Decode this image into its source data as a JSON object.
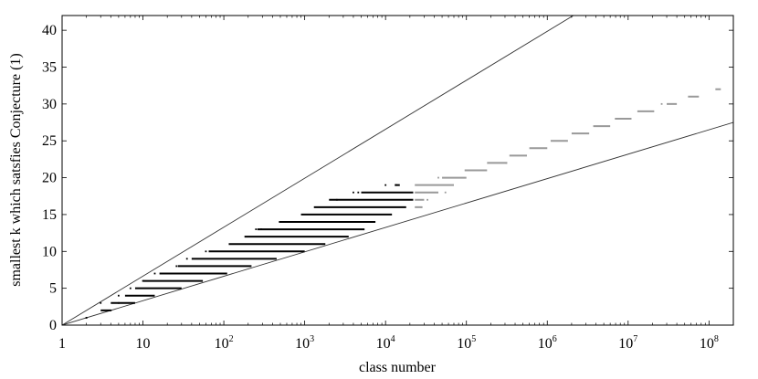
{
  "chart_data": {
    "type": "scatter",
    "xlabel": "class number",
    "ylabel": "smallest k which satsfies Conjecture (1)",
    "x_scale": "log",
    "xlim": [
      1,
      200000000
    ],
    "ylim": [
      0,
      42
    ],
    "x_ticks": [
      {
        "value": 1,
        "label": "1"
      },
      {
        "value": 10,
        "label": "10"
      },
      {
        "value": 100,
        "base": "10",
        "exp": "2"
      },
      {
        "value": 1000,
        "base": "10",
        "exp": "3"
      },
      {
        "value": 10000,
        "base": "10",
        "exp": "4"
      },
      {
        "value": 100000,
        "base": "10",
        "exp": "5"
      },
      {
        "value": 1000000,
        "base": "10",
        "exp": "6"
      },
      {
        "value": 10000000,
        "base": "10",
        "exp": "7"
      },
      {
        "value": 100000000,
        "base": "10",
        "exp": "8"
      }
    ],
    "y_ticks": [
      0,
      5,
      10,
      15,
      20,
      25,
      30,
      35,
      40
    ],
    "grid": false,
    "legend": "none",
    "bound_lines": [
      {
        "points": [
          [
            1,
            0
          ],
          [
            2100000,
            42
          ]
        ],
        "color": "#333333"
      },
      {
        "points": [
          [
            1,
            0
          ],
          [
            200000000,
            27.5
          ]
        ],
        "color": "#333333"
      }
    ],
    "series": [
      {
        "color": "#000000",
        "ranges": [
          {
            "k": 1,
            "x_from": 2,
            "x_to": 2
          },
          {
            "k": 2,
            "x_from": 3,
            "x_to": 4
          },
          {
            "k": 3,
            "x_from": 4,
            "x_to": 8
          },
          {
            "k": 4,
            "x_from": 6,
            "x_to": 14
          },
          {
            "k": 5,
            "x_from": 8,
            "x_to": 30
          },
          {
            "k": 6,
            "x_from": 10,
            "x_to": 55
          },
          {
            "k": 7,
            "x_from": 16,
            "x_to": 110
          },
          {
            "k": 8,
            "x_from": 27,
            "x_to": 220
          },
          {
            "k": 9,
            "x_from": 40,
            "x_to": 450
          },
          {
            "k": 10,
            "x_from": 65,
            "x_to": 1000
          },
          {
            "k": 11,
            "x_from": 115,
            "x_to": 1800
          },
          {
            "k": 12,
            "x_from": 180,
            "x_to": 3500
          },
          {
            "k": 13,
            "x_from": 260,
            "x_to": 5500
          },
          {
            "k": 14,
            "x_from": 480,
            "x_to": 7500
          },
          {
            "k": 15,
            "x_from": 900,
            "x_to": 12000
          },
          {
            "k": 16,
            "x_from": 1300,
            "x_to": 18000
          },
          {
            "k": 17,
            "x_from": 2000,
            "x_to": 22000
          },
          {
            "k": 18,
            "x_from": 5000,
            "x_to": 22000
          },
          {
            "k": 19,
            "x_from": 13000,
            "x_to": 15000
          }
        ],
        "isolated": [
          [
            2,
            1
          ],
          [
            4,
            2
          ],
          [
            3,
            3
          ],
          [
            5,
            3
          ],
          [
            5,
            4
          ],
          [
            7,
            5
          ],
          [
            10,
            6
          ],
          [
            14,
            7
          ],
          [
            17,
            7
          ],
          [
            26,
            8
          ],
          [
            35,
            9
          ],
          [
            60,
            10
          ],
          [
            250,
            13
          ],
          [
            290,
            13
          ],
          [
            2500,
            17
          ],
          [
            4000,
            18
          ],
          [
            4600,
            18
          ],
          [
            10000,
            19
          ],
          [
            13500,
            19
          ]
        ]
      },
      {
        "color": "#999999",
        "ranges": [
          {
            "k": 16,
            "x_from": 23000,
            "x_to": 28000
          },
          {
            "k": 17,
            "x_from": 23000,
            "x_to": 30000
          },
          {
            "k": 18,
            "x_from": 23000,
            "x_to": 45000
          },
          {
            "k": 19,
            "x_from": 23000,
            "x_to": 70000
          },
          {
            "k": 20,
            "x_from": 50000,
            "x_to": 100000
          },
          {
            "k": 21,
            "x_from": 95000,
            "x_to": 180000
          },
          {
            "k": 22,
            "x_from": 180000,
            "x_to": 320000
          },
          {
            "k": 23,
            "x_from": 340000,
            "x_to": 560000
          },
          {
            "k": 24,
            "x_from": 600000,
            "x_to": 1000000
          },
          {
            "k": 25,
            "x_from": 1100000,
            "x_to": 1800000
          },
          {
            "k": 26,
            "x_from": 2000000,
            "x_to": 3300000
          },
          {
            "k": 27,
            "x_from": 3700000,
            "x_to": 6000000
          },
          {
            "k": 28,
            "x_from": 7000000,
            "x_to": 11000000
          },
          {
            "k": 29,
            "x_from": 13000000,
            "x_to": 21000000
          },
          {
            "k": 30,
            "x_from": 30000000,
            "x_to": 40000000
          },
          {
            "k": 31,
            "x_from": 55000000,
            "x_to": 75000000
          },
          {
            "k": 32,
            "x_from": 120000000,
            "x_to": 140000000
          }
        ],
        "isolated": [
          [
            28000,
            16
          ],
          [
            33000,
            17
          ],
          [
            55000,
            18
          ],
          [
            45000,
            20
          ],
          [
            170000,
            21
          ],
          [
            310000,
            22
          ],
          [
            7000000,
            28
          ],
          [
            26000000,
            30
          ]
        ]
      }
    ]
  }
}
